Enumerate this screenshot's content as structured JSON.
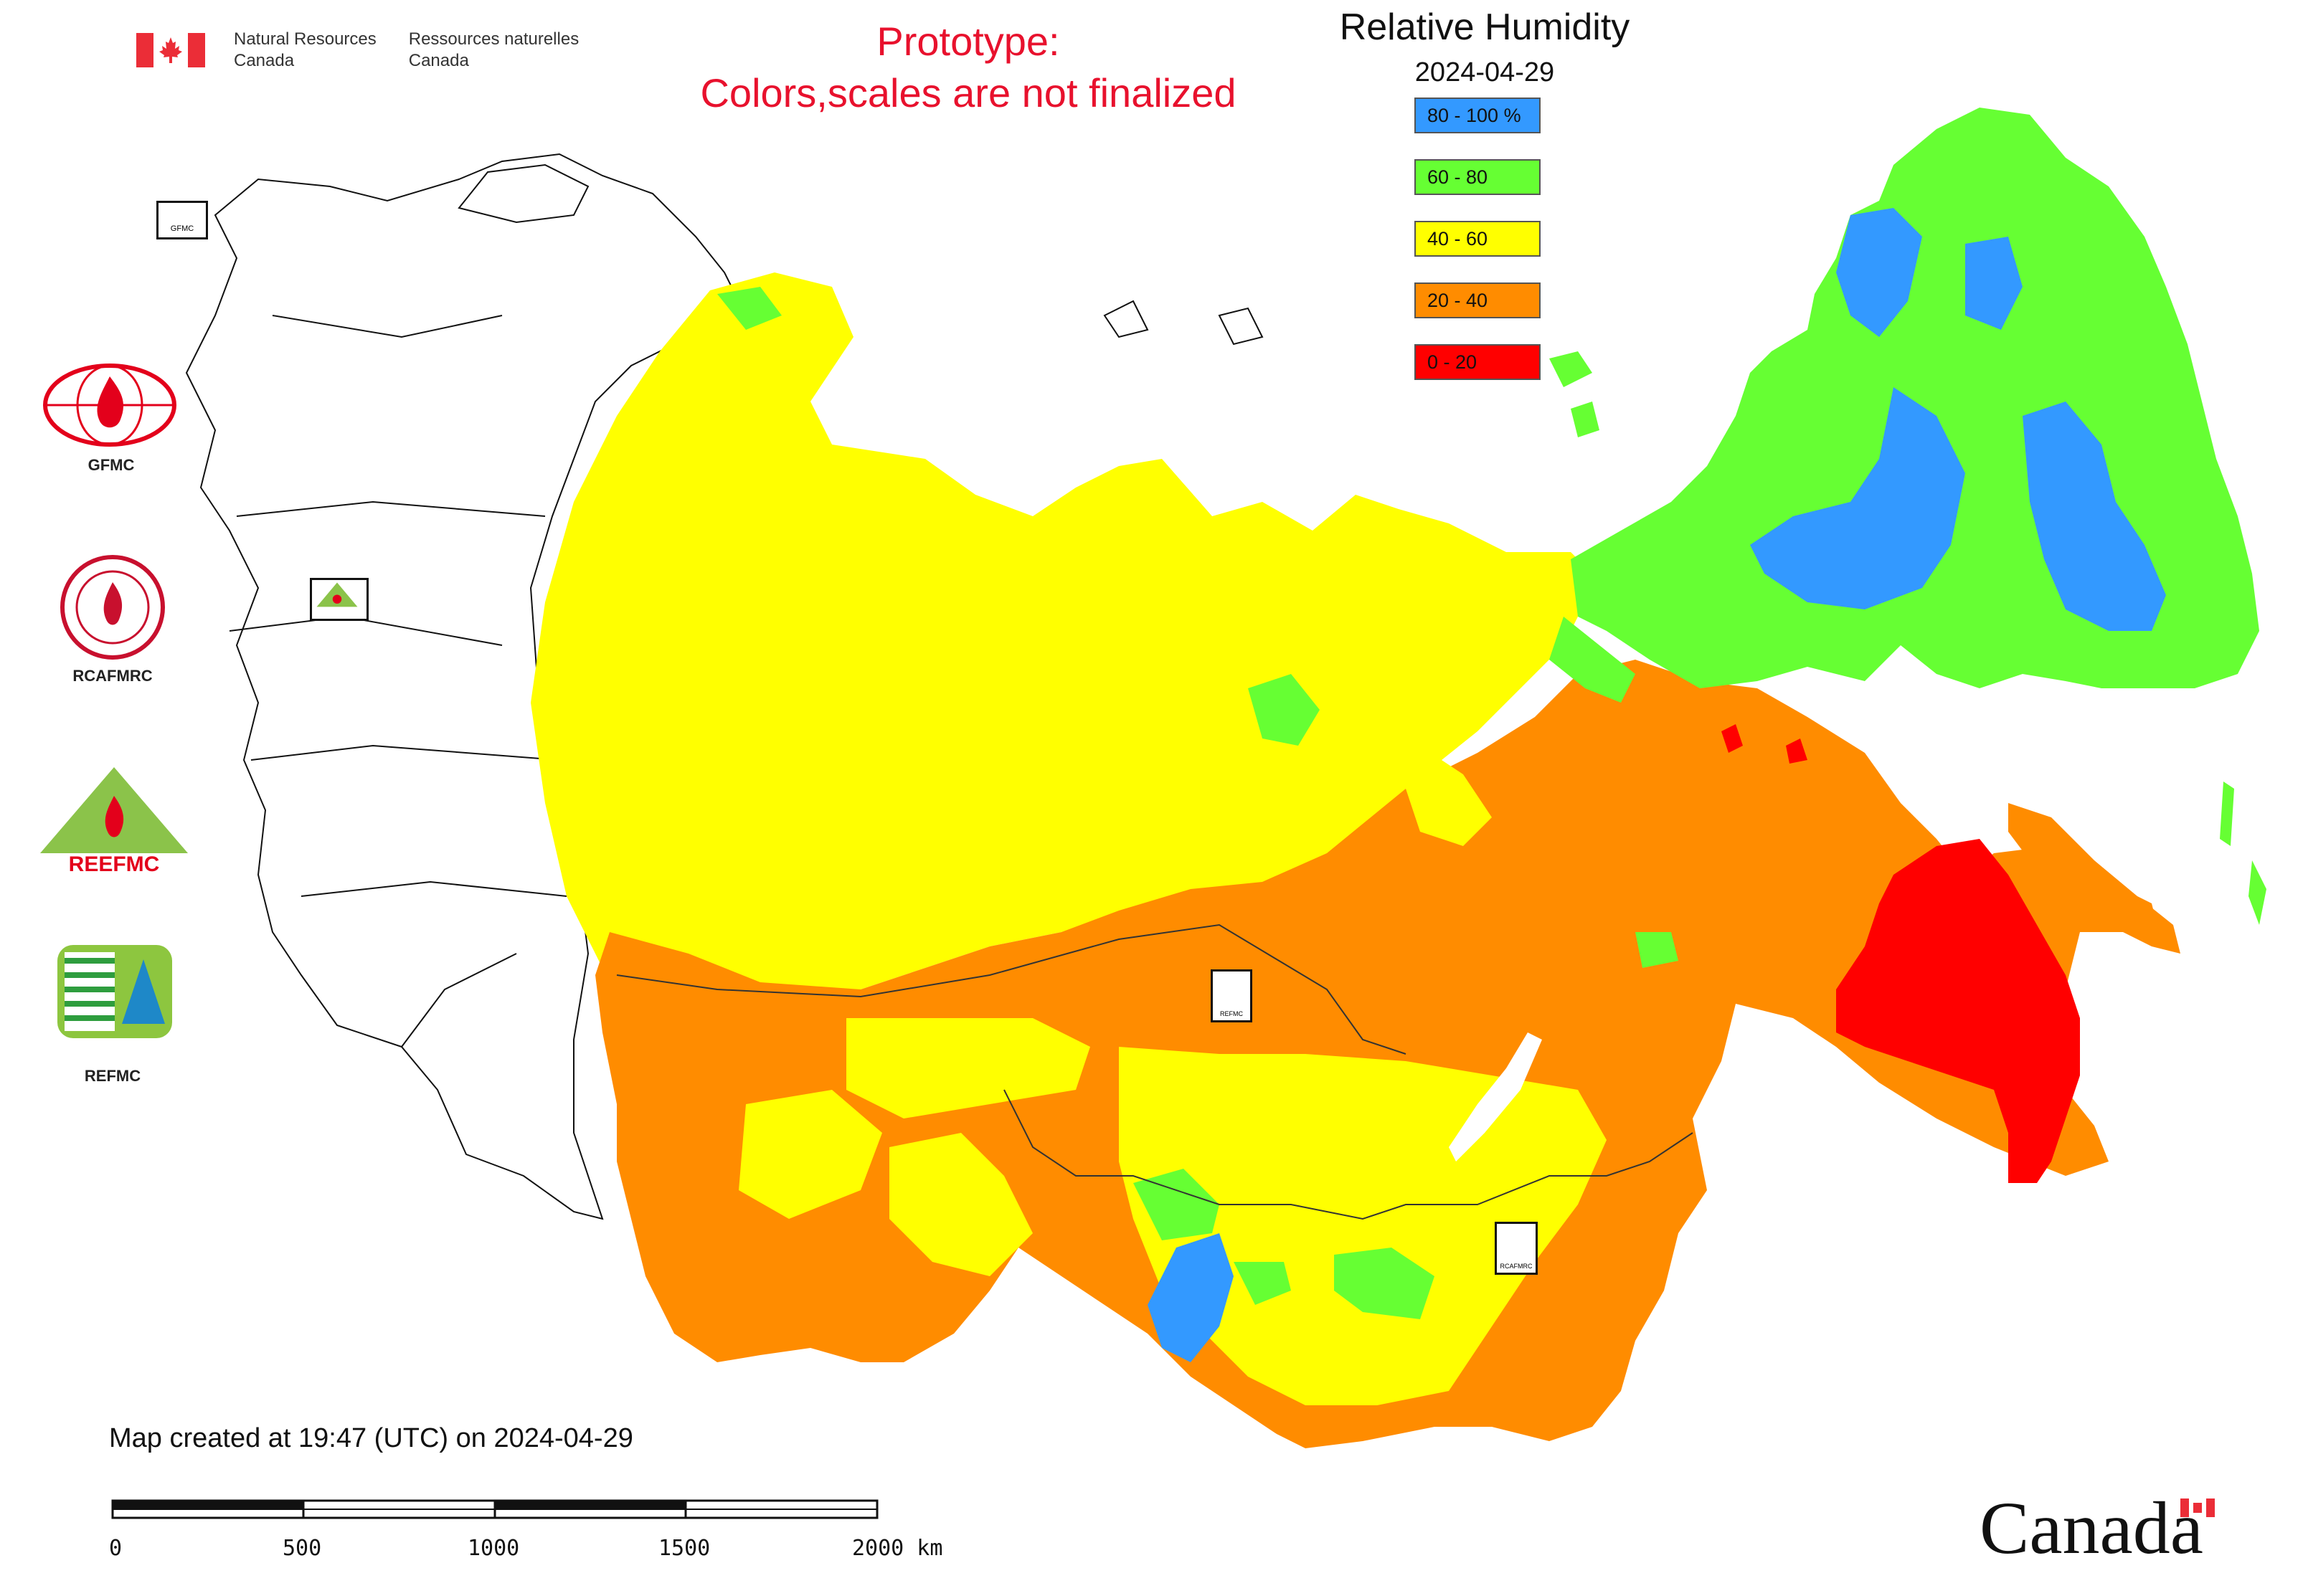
{
  "header": {
    "dept_en_line1": "Natural Resources",
    "dept_en_line2": "Canada",
    "dept_fr_line1": "Ressources naturelles",
    "dept_fr_line2": "Canada"
  },
  "prototype_notice": {
    "line1": "Prototype:",
    "line2": "Colors,scales are not finalized"
  },
  "map_title": "Relative Humidity",
  "map_date": "2024-04-29",
  "legend": [
    {
      "label": "80 - 100 %",
      "color": "#3399ff"
    },
    {
      "label": "60 - 80",
      "color": "#66ff33"
    },
    {
      "label": "40 - 60",
      "color": "#ffff00"
    },
    {
      "label": "20 - 40",
      "color": "#ff8c00"
    },
    {
      "label": "0 - 20",
      "color": "#ff0000"
    }
  ],
  "logos": [
    {
      "label": "GFMC",
      "icon": "gfmc-logo-icon"
    },
    {
      "label": "RCAFMRC",
      "icon": "rcafmrc-logo-icon"
    },
    {
      "label": "",
      "icon": "reefmc-logo-icon",
      "wordmark": "REEFMC"
    },
    {
      "label": "REFMC",
      "icon": "refmc-logo-icon"
    }
  ],
  "map_markers": [
    {
      "name": "gfmc-marker",
      "label": "GFMC"
    },
    {
      "name": "reefmc-marker",
      "label": "REEFMC"
    },
    {
      "name": "refmc-marker",
      "label": "REFMC"
    },
    {
      "name": "rcafmrc-marker",
      "label": "RCAFMRC"
    }
  ],
  "footer": {
    "created_text": "Map created at 19:47 (UTC) on 2024-04-29",
    "scale_ticks": [
      "0",
      "500",
      "1000",
      "1500",
      "2000 km"
    ],
    "wordmark": "Canada"
  }
}
